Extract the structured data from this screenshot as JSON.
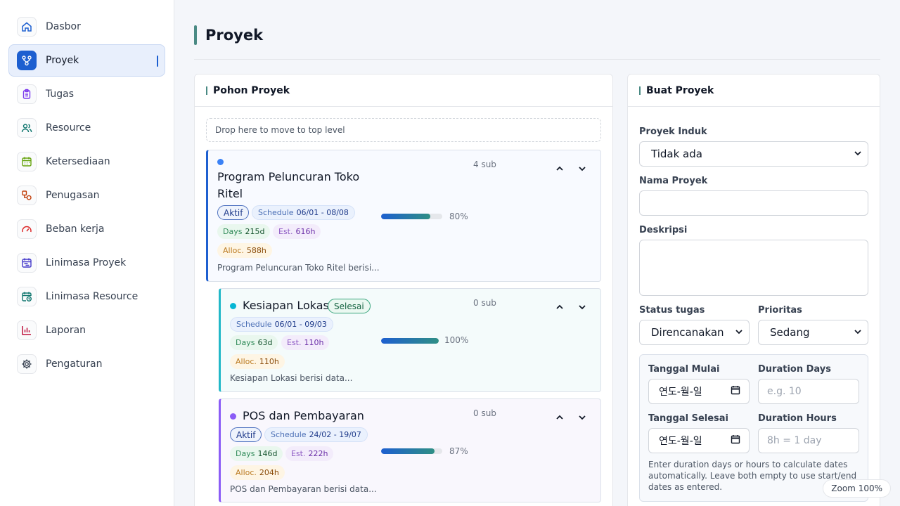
{
  "sidebar": {
    "items": [
      {
        "label": "Dasbor",
        "icon": "home-icon",
        "color": "#1d5fd0"
      },
      {
        "label": "Proyek",
        "icon": "project-tree-icon",
        "color": "#ffffff"
      },
      {
        "label": "Tugas",
        "icon": "clipboard-icon",
        "color": "#7c3aed"
      },
      {
        "label": "Resource",
        "icon": "users-icon",
        "color": "#0f766e"
      },
      {
        "label": "Ketersediaan",
        "icon": "calendar-icon",
        "color": "#65a30d"
      },
      {
        "label": "Penugasan",
        "icon": "assignment-icon",
        "color": "#c2410c"
      },
      {
        "label": "Beban kerja",
        "icon": "gauge-icon",
        "color": "#dc2626"
      },
      {
        "label": "Linimasa Proyek",
        "icon": "project-timeline-icon",
        "color": "#4338ca"
      },
      {
        "label": "Linimasa Resource",
        "icon": "resource-timeline-icon",
        "color": "#0f766e"
      },
      {
        "label": "Laporan",
        "icon": "bar-chart-icon",
        "color": "#be123c"
      },
      {
        "label": "Pengaturan",
        "icon": "gear-icon",
        "color": "#374151"
      }
    ]
  },
  "header": {
    "title": "Proyek"
  },
  "tree": {
    "title": "Pohon Proyek",
    "drop_zone": "Drop here to move to top level",
    "projects": [
      {
        "name": "Program Peluncuran Toko Ritel",
        "sub": "4 sub",
        "status": "Aktif",
        "schedule_label": "Schedule",
        "schedule": "06/01 - 08/08",
        "days_label": "Days",
        "days": "215d",
        "est_label": "Est.",
        "est": "616h",
        "alloc_label": "Alloc.",
        "alloc": "588h",
        "progress": 80,
        "progress_text": "80%",
        "description": "Program Peluncuran Toko Ritel berisi...",
        "dot_color": "#3b82f6",
        "border_color": "#1d5fd0"
      },
      {
        "name": "Kesiapan Lokasi",
        "sub": "0 sub",
        "status": "Selesai",
        "schedule_label": "Schedule",
        "schedule": "06/01 - 09/03",
        "days_label": "Days",
        "days": "63d",
        "est_label": "Est.",
        "est": "110h",
        "alloc_label": "Alloc.",
        "alloc": "110h",
        "progress": 100,
        "progress_text": "100%",
        "description": "Kesiapan Lokasi berisi data...",
        "dot_color": "#06b6d4",
        "border_color": "#22b8c8"
      },
      {
        "name": "POS dan Pembayaran",
        "sub": "0 sub",
        "status": "Aktif",
        "schedule_label": "Schedule",
        "schedule": "24/02 - 19/07",
        "days_label": "Days",
        "days": "146d",
        "est_label": "Est.",
        "est": "222h",
        "alloc_label": "Alloc.",
        "alloc": "204h",
        "progress": 87,
        "progress_text": "87%",
        "description": "POS dan Pembayaran berisi data...",
        "dot_color": "#8b5cf6",
        "border_color": "#8b5cf6"
      }
    ]
  },
  "form": {
    "title": "Buat Proyek",
    "parent_label": "Proyek Induk",
    "parent_value": "Tidak ada",
    "name_label": "Nama Proyek",
    "name_value": "",
    "desc_label": "Deskripsi",
    "desc_value": "",
    "status_label": "Status tugas",
    "status_value": "Direncanakan",
    "priority_label": "Prioritas",
    "priority_value": "Sedang",
    "start_label": "Tanggal Mulai",
    "start_value": "연도-월-일",
    "duration_days_label": "Duration Days",
    "duration_days_placeholder": "e.g. 10",
    "end_label": "Tanggal Selesai",
    "end_value": "연도-월-일",
    "duration_hours_label": "Duration Hours",
    "duration_hours_placeholder": "8h = 1 day",
    "helper": "Enter duration days or hours to calculate dates automatically. Leave both empty to use start/end dates as entered."
  },
  "zoom": "Zoom 100%",
  "colors": {
    "accent": "#1d5fd0",
    "header_accent": "#4a8a84"
  }
}
